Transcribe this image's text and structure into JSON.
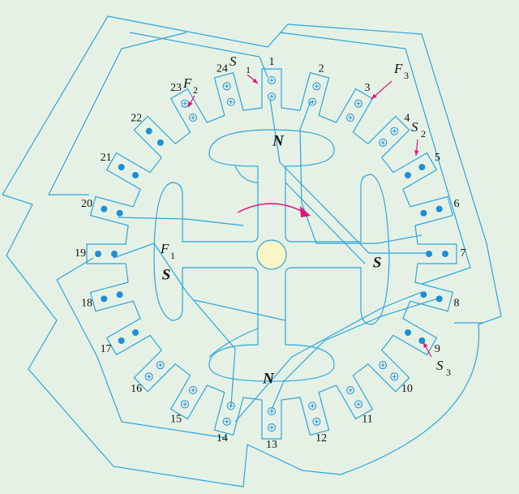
{
  "slots": [
    "1",
    "2",
    "3",
    "4",
    "5",
    "6",
    "7",
    "8",
    "9",
    "10",
    "11",
    "12",
    "13",
    "14",
    "15",
    "16",
    "17",
    "18",
    "19",
    "20",
    "21",
    "22",
    "23",
    "24"
  ],
  "terminals": [
    {
      "letter": "F",
      "index": "1"
    },
    {
      "letter": "F",
      "index": "2"
    },
    {
      "letter": "F",
      "index": "3"
    },
    {
      "letter": "S",
      "index": "1"
    },
    {
      "letter": "S",
      "index": "2"
    },
    {
      "letter": "S",
      "index": "3"
    }
  ],
  "poles": [
    "N",
    "S",
    "N",
    "S"
  ]
}
